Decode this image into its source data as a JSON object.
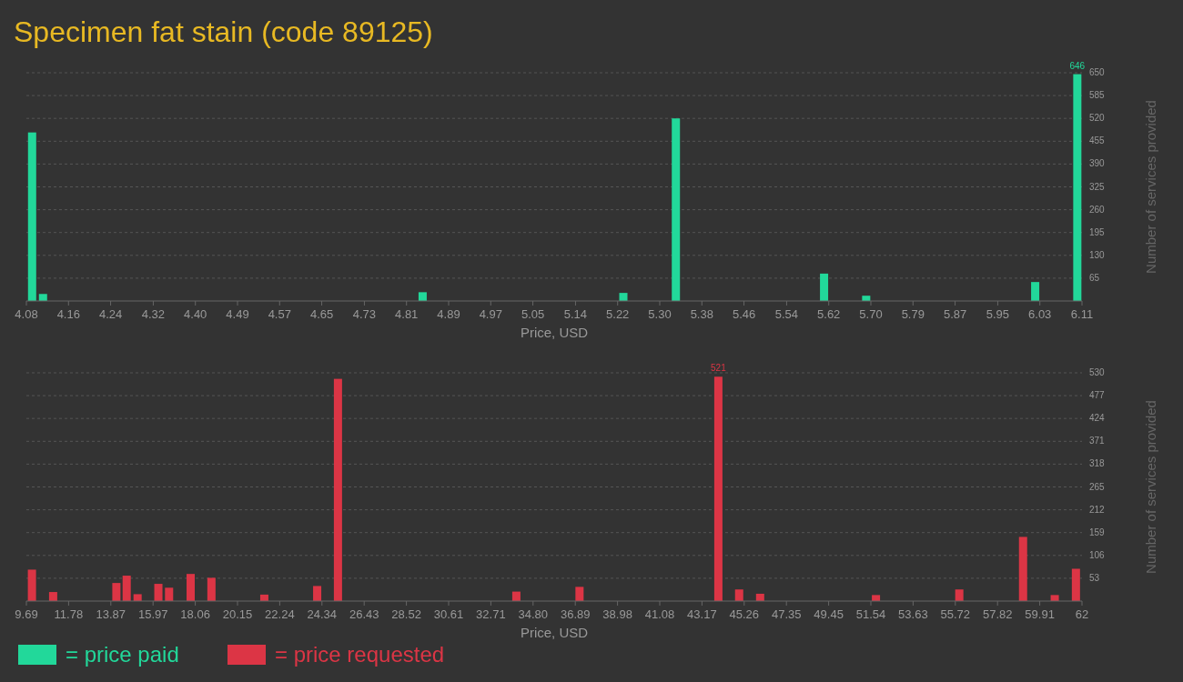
{
  "chart_data": [
    {
      "type": "bar",
      "title": "Specimen fat stain (code 89125)",
      "xlabel": "Price, USD",
      "ylabel": "Number of services provided",
      "x": [
        4.091,
        4.112,
        4.842,
        5.228,
        5.329,
        5.614,
        5.695,
        6.02,
        6.101
      ],
      "series": [
        {
          "name": "= price paid",
          "color": "#22d89a",
          "values": [
            480,
            20,
            25,
            23,
            520,
            78,
            15,
            54,
            646
          ]
        }
      ],
      "xlim": [
        4.08,
        6.11
      ],
      "xticks": [
        4.08,
        {
          "value": 4.161,
          "label": "4.16"
        },
        {
          "value": 4.242,
          "label": "4.24"
        },
        {
          "value": 4.324,
          "label": "4.32"
        },
        {
          "value": 4.405,
          "label": "4.40"
        },
        {
          "value": 4.486,
          "label": "4.49"
        },
        {
          "value": 4.567,
          "label": "4.57"
        },
        {
          "value": 4.648,
          "label": "4.65"
        },
        {
          "value": 4.73,
          "label": "4.73"
        },
        {
          "value": 4.811,
          "label": "4.81"
        },
        {
          "value": 4.892,
          "label": "4.89"
        },
        {
          "value": 4.973,
          "label": "4.97"
        },
        {
          "value": 5.054,
          "label": "5.05"
        },
        {
          "value": 5.136,
          "label": "5.14"
        },
        {
          "value": 5.217,
          "label": "5.22"
        },
        {
          "value": 5.298,
          "label": "5.30"
        },
        {
          "value": 5.379,
          "label": "5.38"
        },
        {
          "value": 5.46,
          "label": "5.46"
        },
        {
          "value": 5.542,
          "label": "5.54"
        },
        {
          "value": 5.623,
          "label": "5.62"
        },
        {
          "value": 5.704,
          "label": "5.70"
        },
        {
          "value": 5.785,
          "label": "5.79"
        },
        {
          "value": 5.866,
          "label": "5.87"
        },
        {
          "value": 5.948,
          "label": "5.95"
        },
        {
          "value": 6.029,
          "label": "6.03"
        },
        6.11
      ],
      "ylim": [
        0,
        650
      ],
      "yticks": [
        65,
        130,
        195,
        260,
        325,
        390,
        455,
        520,
        585,
        650
      ],
      "grid": "y",
      "legend": "bottom left",
      "annotations": [
        {
          "text": "646",
          "x": 6.101,
          "y": 646
        }
      ]
    },
    {
      "type": "bar",
      "xlabel": "Price, USD",
      "ylabel": "Number of services provided",
      "x": [
        9.965,
        11.016,
        14.15,
        14.66,
        15.2,
        16.23,
        16.76,
        17.83,
        18.86,
        21.48,
        24.1,
        25.13,
        33.97,
        37.1,
        43.98,
        45.01,
        46.05,
        51.79,
        55.92,
        59.08,
        60.65,
        61.7
      ],
      "series": [
        {
          "name": "= price requested",
          "color": "#dc3545",
          "values": [
            73,
            21,
            42,
            59,
            16,
            40,
            31,
            63,
            54,
            15,
            35,
            516,
            22,
            33,
            521,
            27,
            17,
            14,
            27,
            149,
            14,
            75
          ]
        }
      ],
      "xlim": [
        9.69,
        62
      ],
      "xticks": [
        9.69,
        {
          "value": 11.782,
          "label": "11.78"
        },
        {
          "value": 13.875,
          "label": "13.87"
        },
        {
          "value": 15.967,
          "label": "15.97"
        },
        18.06,
        {
          "value": 20.152,
          "label": "20.15"
        },
        {
          "value": 22.244,
          "label": "22.24"
        },
        {
          "value": 24.337,
          "label": "24.34"
        },
        {
          "value": 26.429,
          "label": "26.43"
        },
        {
          "value": 28.522,
          "label": "28.52"
        },
        {
          "value": 30.614,
          "label": "30.61"
        },
        {
          "value": 32.706,
          "label": "32.71"
        },
        {
          "value": 34.799,
          "label": "34.80"
        },
        {
          "value": 36.891,
          "label": "36.89"
        },
        {
          "value": 38.984,
          "label": "38.98"
        },
        {
          "value": 41.076,
          "label": "41.08"
        },
        {
          "value": 43.168,
          "label": "43.17"
        },
        {
          "value": 45.261,
          "label": "45.26"
        },
        {
          "value": 47.353,
          "label": "47.35"
        },
        {
          "value": 49.446,
          "label": "49.45"
        },
        {
          "value": 51.538,
          "label": "51.54"
        },
        53.63,
        {
          "value": 55.723,
          "label": "55.72"
        },
        {
          "value": 57.815,
          "label": "57.82"
        },
        {
          "value": 59.908,
          "label": "59.91"
        },
        62
      ],
      "ylim": [
        0,
        530
      ],
      "yticks": [
        53,
        106,
        159,
        212,
        265,
        318,
        371,
        424,
        477,
        530
      ],
      "grid": "y",
      "legend": "bottom left",
      "annotations": [
        {
          "text": "521",
          "x": 43.98,
          "y": 521
        }
      ]
    }
  ]
}
